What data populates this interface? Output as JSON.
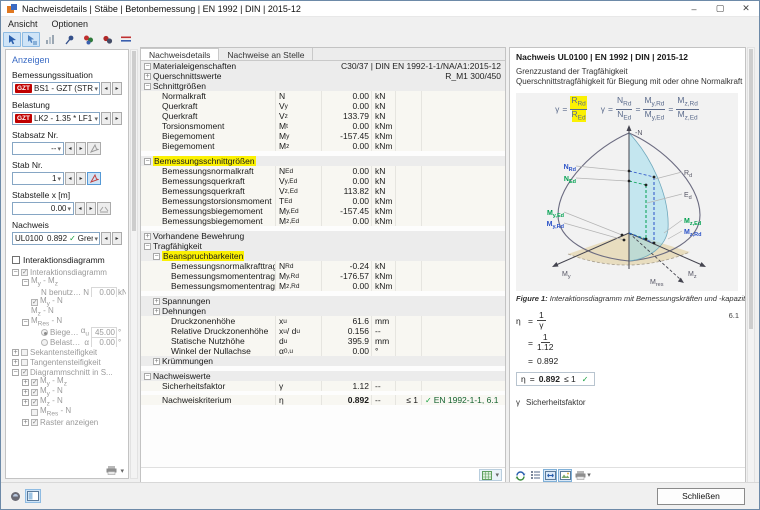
{
  "window": {
    "title": "Nachweisdetails | Stäbe | Betonbemessung | EN 1992 | DIN | 2015-12"
  },
  "menu": {
    "items": [
      "Ansicht",
      "Optionen"
    ]
  },
  "colors": {
    "badge_red": "#c00000",
    "highlight_yellow": "#fbf103",
    "check_green": "#15a03c",
    "header_blue": "#3a6bc4"
  },
  "left": {
    "header": "Anzeigen",
    "situation": {
      "label": "Bemessungssituation",
      "badge": "GZT",
      "value": "BS1 - GZT (STR/GEO) - Ständig u..."
    },
    "load": {
      "label": "Belastung",
      "badge": "GZT",
      "value": "LK2 - 1.35 * LF1 + 1.35 * LF2 + 1..."
    },
    "memberset": {
      "label": "Stabsatz Nr.",
      "value": "--"
    },
    "member": {
      "label": "Stab Nr.",
      "value": "1"
    },
    "location": {
      "label": "Stabstelle x [m]",
      "value": "0.00"
    },
    "design": {
      "label": "Nachweis",
      "value": "UL0100",
      "ratio": "0.892",
      "check": "✓",
      "state": "Grenzzustand ..."
    },
    "interaction_checkbox": "Interaktionsdiagramm",
    "tree": [
      {
        "lvl": 0,
        "exp": "m",
        "ctl": "cb1",
        "label": "Interaktionsdiagramm"
      },
      {
        "lvl": 1,
        "exp": "m",
        "label": "M_y - M_z"
      },
      {
        "lvl": 2,
        "label": "N benutzerdef...",
        "sym": "N",
        "val": "0.00",
        "unit": "kN"
      },
      {
        "lvl": 1,
        "ctl": "cb1",
        "label": "M_y - N"
      },
      {
        "lvl": 1,
        "label": "M_z - N"
      },
      {
        "lvl": 1,
        "exp": "m",
        "label": "M_Res - N"
      },
      {
        "lvl": 2,
        "ctl": "ro1",
        "label": "Biegemomen...",
        "sym": "α_u",
        "val": "45.00",
        "unit": "°"
      },
      {
        "lvl": 2,
        "ctl": "ro0",
        "label": "Belastungswi...",
        "sym": "α",
        "val": "0.00",
        "unit": "°"
      },
      {
        "lvl": 0,
        "exp": "p",
        "ctl": "cb0",
        "label": "Sekantensteifigkeit"
      },
      {
        "lvl": 0,
        "exp": "p",
        "ctl": "cb0",
        "label": "Tangentensteifigkeit"
      },
      {
        "lvl": 0,
        "exp": "m",
        "ctl": "cb1",
        "label": "Diagrammschnitt in S..."
      },
      {
        "lvl": 1,
        "exp": "p",
        "ctl": "cb1",
        "label": "M_y - M_z"
      },
      {
        "lvl": 1,
        "exp": "p",
        "ctl": "cb1",
        "label": "M_y - N"
      },
      {
        "lvl": 1,
        "exp": "p",
        "ctl": "cb1",
        "label": "M_z - N"
      },
      {
        "lvl": 1,
        "ctl": "cb0",
        "label": "M_Res - N"
      },
      {
        "lvl": 1,
        "exp": "p",
        "ctl": "cb1",
        "label": "Raster anzeigen"
      }
    ]
  },
  "tabs": [
    {
      "label": "Nachweisdetails",
      "active": true
    },
    {
      "label": "Nachweise an Stelle",
      "active": false
    }
  ],
  "table": {
    "rows": [
      {
        "t": "g",
        "lvl": 0,
        "exp": "m",
        "label": "Materialeigenschaften",
        "right": "C30/37 | DIN EN 1992-1-1/NA/A1:2015-12"
      },
      {
        "t": "g",
        "lvl": 0,
        "exp": "p",
        "label": "Querschnittswerte",
        "right": "R_M1 300/450"
      },
      {
        "t": "g",
        "lvl": 0,
        "exp": "m",
        "label": "Schnittgrößen"
      },
      {
        "t": "l",
        "lvl": 1,
        "label": "Normalkraft",
        "sym": "N",
        "val": "0.00",
        "unit": "kN"
      },
      {
        "t": "l",
        "lvl": 1,
        "label": "Querkraft",
        "sym": "V_y",
        "val": "0.00",
        "unit": "kN"
      },
      {
        "t": "l",
        "lvl": 1,
        "label": "Querkraft",
        "sym": "V_z",
        "val": "133.79",
        "unit": "kN"
      },
      {
        "t": "l",
        "lvl": 1,
        "label": "Torsionsmoment",
        "sym": "M_t",
        "val": "0.00",
        "unit": "kNm"
      },
      {
        "t": "l",
        "lvl": 1,
        "label": "Biegemoment",
        "sym": "M_y",
        "val": "-157.45",
        "unit": "kNm"
      },
      {
        "t": "l",
        "lvl": 1,
        "label": "Biegemoment",
        "sym": "M_z",
        "val": "0.00",
        "unit": "kNm"
      },
      {
        "t": "s"
      },
      {
        "t": "g",
        "lvl": 0,
        "exp": "m",
        "label": "Bemessungsschnittgrößen",
        "hl": true
      },
      {
        "t": "l",
        "lvl": 1,
        "label": "Bemessungsnormalkraft",
        "sym": "N_Ed",
        "val": "0.00",
        "unit": "kN"
      },
      {
        "t": "l",
        "lvl": 1,
        "label": "Bemessungsquerkraft",
        "sym": "V_y,Ed",
        "val": "0.00",
        "unit": "kN"
      },
      {
        "t": "l",
        "lvl": 1,
        "label": "Bemessungsquerkraft",
        "sym": "V_z,Ed",
        "val": "113.82",
        "unit": "kN"
      },
      {
        "t": "l",
        "lvl": 1,
        "label": "Bemessungstorsionsmoment",
        "sym": "T_Ed",
        "val": "0.00",
        "unit": "kNm"
      },
      {
        "t": "l",
        "lvl": 1,
        "label": "Bemessungsbiegemoment",
        "sym": "M_y,Ed",
        "val": "-157.45",
        "unit": "kNm"
      },
      {
        "t": "l",
        "lvl": 1,
        "label": "Bemessungsbiegemoment",
        "sym": "M_z,Ed",
        "val": "0.00",
        "unit": "kNm"
      },
      {
        "t": "s"
      },
      {
        "t": "g",
        "lvl": 0,
        "exp": "p",
        "label": "Vorhandene Bewehrung"
      },
      {
        "t": "g",
        "lvl": 0,
        "exp": "m",
        "label": "Tragfähigkeit"
      },
      {
        "t": "g",
        "lvl": 1,
        "exp": "m",
        "label": "Beanspruchbarkeiten",
        "hl": true
      },
      {
        "t": "l",
        "lvl": 2,
        "label": "Bemessungsnormalkrafttragfähigkeit",
        "sym": "N_Rd",
        "val": "-0.24",
        "unit": "kN"
      },
      {
        "t": "l",
        "lvl": 2,
        "label": "Bemessungsmomententragfähigkeit um y-Achse",
        "sym": "M_y,Rd",
        "val": "-176.57",
        "unit": "kNm"
      },
      {
        "t": "l",
        "lvl": 2,
        "label": "Bemessungsmomententragfähigkeit um z-Achse",
        "sym": "M_z,Rd",
        "val": "0.00",
        "unit": "kNm"
      },
      {
        "t": "s"
      },
      {
        "t": "g",
        "lvl": 1,
        "exp": "p",
        "label": "Spannungen"
      },
      {
        "t": "g",
        "lvl": 1,
        "exp": "p",
        "label": "Dehnungen"
      },
      {
        "t": "l",
        "lvl": 2,
        "label": "Druckzonenhöhe",
        "sym": "x_u",
        "val": "61.6",
        "unit": "mm"
      },
      {
        "t": "l",
        "lvl": 2,
        "label": "Relative Druckzonenhöhe",
        "sym": "x_u / d_u",
        "val": "0.156",
        "unit": "--"
      },
      {
        "t": "l",
        "lvl": 2,
        "label": "Statische Nutzhöhe",
        "sym": "d_u",
        "val": "395.9",
        "unit": "mm"
      },
      {
        "t": "l",
        "lvl": 2,
        "label": "Winkel der Nullachse",
        "sym": "α_0,u",
        "val": "0.00",
        "unit": "°"
      },
      {
        "t": "g",
        "lvl": 1,
        "exp": "p",
        "label": "Krümmungen"
      },
      {
        "t": "s"
      },
      {
        "t": "g",
        "lvl": 0,
        "exp": "m",
        "label": "Nachweiswerte"
      },
      {
        "t": "l",
        "lvl": 1,
        "label": "Sicherheitsfaktor",
        "sym": "γ",
        "val": "1.12",
        "unit": "--"
      },
      {
        "t": "s",
        "h": 4
      },
      {
        "t": "l",
        "lvl": 1,
        "label": "Nachweiskriterium",
        "sym": "η",
        "val": "0.892",
        "unit": "--",
        "crit": "≤ 1",
        "check": true,
        "ref": "EN 1992-1-1, 6.1",
        "bold": true
      }
    ]
  },
  "right": {
    "title": "Nachweis UL0100 | EN 1992 | DIN | 2015-12",
    "desc1": "Grenzzustand der Tragfähigkeit",
    "desc2": "Querschnittstragfähigkeit für Biegung mit oder ohne Normalkraft nach 6.1",
    "formula": {
      "parts": [
        {
          "t": "sym",
          "v": "γ"
        },
        {
          "t": "op",
          "v": "="
        },
        {
          "t": "frac",
          "num": "R_Rd",
          "den": "R_Ed",
          "hl": true
        },
        {
          "t": "gap"
        },
        {
          "t": "sym",
          "v": "γ"
        },
        {
          "t": "op",
          "v": "="
        },
        {
          "t": "frac",
          "num": "N_Rd",
          "den": "N_Ed"
        },
        {
          "t": "op",
          "v": "="
        },
        {
          "t": "frac",
          "num": "M_y,Rd",
          "den": "M_y,Ed"
        },
        {
          "t": "op",
          "v": "="
        },
        {
          "t": "frac",
          "num": "M_z,Rd",
          "den": "M_z,Ed"
        }
      ]
    },
    "diagram_labels": [
      "-N",
      "N_Rd",
      "N_Ed",
      "M_y,Ed",
      "M_y,Rd",
      "R_d",
      "E_d",
      "M_z,Ed",
      "M_z,Rd",
      "M_y",
      "M_z",
      "M_res"
    ],
    "figure_caption_label": "Figure 1:",
    "figure_caption": " Interaktionsdiagramm mit Bemessungskräften und -kapazitäten",
    "eta": {
      "lines": [
        {
          "lhs": "η",
          "op": "=",
          "num": "1",
          "den": "γ"
        },
        {
          "lhs": "",
          "op": "=",
          "num": "1",
          "den": "1.12"
        },
        {
          "lhs": "",
          "op": "=",
          "val": "0.892"
        }
      ],
      "result": {
        "lhs": "η",
        "op": "=",
        "val": "0.892",
        "rel": "≤ 1",
        "check": "✓"
      },
      "sideref": "6.1"
    },
    "legend_symbol": "γ",
    "legend_text": "Sicherheitsfaktor"
  },
  "footer": {
    "close": "Schließen"
  }
}
